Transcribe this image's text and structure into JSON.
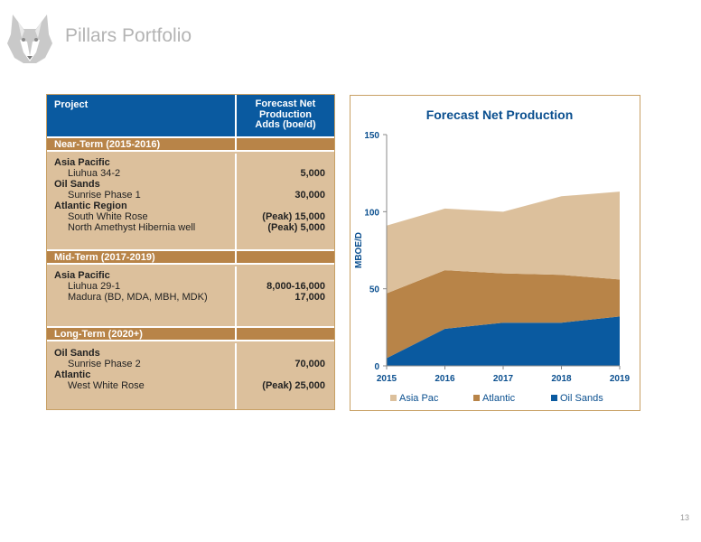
{
  "header": {
    "title": "Pillars Portfolio",
    "page_number": "13"
  },
  "table": {
    "col_project": "Project",
    "col_forecast": [
      "Forecast Net",
      "Production",
      "Adds (boe/d)"
    ],
    "sections": [
      {
        "name": "Near-Term (2015-2016)",
        "lines": [
          {
            "label": "Asia Pacific",
            "value": "",
            "kind": "group"
          },
          {
            "label": "Liuhua 34-2",
            "value": "5,000",
            "kind": "item"
          },
          {
            "label": "Oil Sands",
            "value": "",
            "kind": "group"
          },
          {
            "label": "Sunrise Phase 1",
            "value": "30,000",
            "kind": "item"
          },
          {
            "label": "Atlantic Region",
            "value": "",
            "kind": "group"
          },
          {
            "label": "South White Rose",
            "value": "(Peak) 15,000",
            "kind": "item"
          },
          {
            "label": "North Amethyst Hibernia well",
            "value": "(Peak) 5,000",
            "kind": "item"
          }
        ]
      },
      {
        "name": "Mid-Term (2017-2019)",
        "lines": [
          {
            "label": "Asia Pacific",
            "value": "",
            "kind": "group"
          },
          {
            "label": "Liuhua 29-1",
            "value": "8,000-16,000",
            "kind": "item"
          },
          {
            "label": "Madura (BD, MDA, MBH, MDK)",
            "value": "17,000",
            "kind": "item"
          }
        ]
      },
      {
        "name": "Long-Term (2020+)",
        "lines": [
          {
            "label": "Oil Sands",
            "value": "",
            "kind": "group"
          },
          {
            "label": "Sunrise Phase 2",
            "value": "70,000",
            "kind": "item"
          },
          {
            "label": "Atlantic",
            "value": "",
            "kind": "group"
          },
          {
            "label": "West White Rose",
            "value": "(Peak) 25,000",
            "kind": "item"
          }
        ]
      }
    ]
  },
  "chart_data": {
    "type": "area",
    "stacked": true,
    "title": "Forecast Net Production",
    "xlabel": "",
    "ylabel": "MBOE/D",
    "x": [
      "2015",
      "2016",
      "2017",
      "2018",
      "2019"
    ],
    "ylim": [
      0,
      150
    ],
    "yticks": [
      0,
      50,
      100,
      150
    ],
    "grid": false,
    "legend_position": "bottom",
    "series": [
      {
        "name": "Oil Sands",
        "values": [
          5,
          24,
          28,
          28,
          32
        ],
        "color": "#0a5aa0"
      },
      {
        "name": "Atlantic",
        "values": [
          42,
          38,
          32,
          31,
          24
        ],
        "color": "#b88448"
      },
      {
        "name": "Asia Pac",
        "values": [
          44,
          40,
          40,
          51,
          57
        ],
        "color": "#dcc09c"
      }
    ],
    "legend_order": [
      "Asia Pac",
      "Atlantic",
      "Oil Sands"
    ]
  }
}
